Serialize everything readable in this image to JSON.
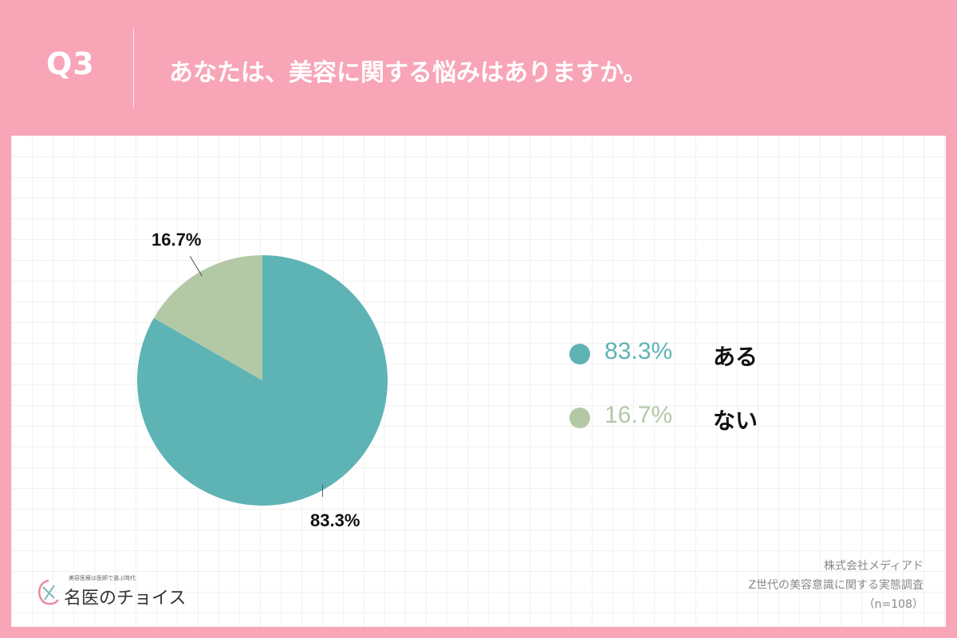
{
  "header": {
    "question_number": "Q3",
    "question_text": "あなたは、美容に関する悩みはありますか。"
  },
  "chart_data": {
    "type": "pie",
    "title": "",
    "slices": [
      {
        "label": "ある",
        "value": 83.3,
        "display": "83.3%",
        "color": "#5eb3b5"
      },
      {
        "label": "ない",
        "value": 16.7,
        "display": "16.7%",
        "color": "#b3c9a6"
      }
    ],
    "start": "12 o'clock",
    "direction": "clockwise",
    "legend_placement": "right"
  },
  "legend": [
    {
      "pct": "83.3%",
      "label": "ある",
      "color": "#5eb3b5"
    },
    {
      "pct": "16.7%",
      "label": "ない",
      "color": "#b3c9a6"
    }
  ],
  "source": {
    "company": "株式会社メディアド",
    "survey": "Z世代の美容意識に関する実態調査",
    "sample": "（n=108）"
  },
  "logo": {
    "tagline": "美容医療は医師で選ぶ時代",
    "name": "名医のチョイス"
  },
  "colors": {
    "background": "#f8a5b8",
    "panel": "#ffffff",
    "series_yes": "#5eb3b5",
    "series_no": "#b3c9a6"
  }
}
